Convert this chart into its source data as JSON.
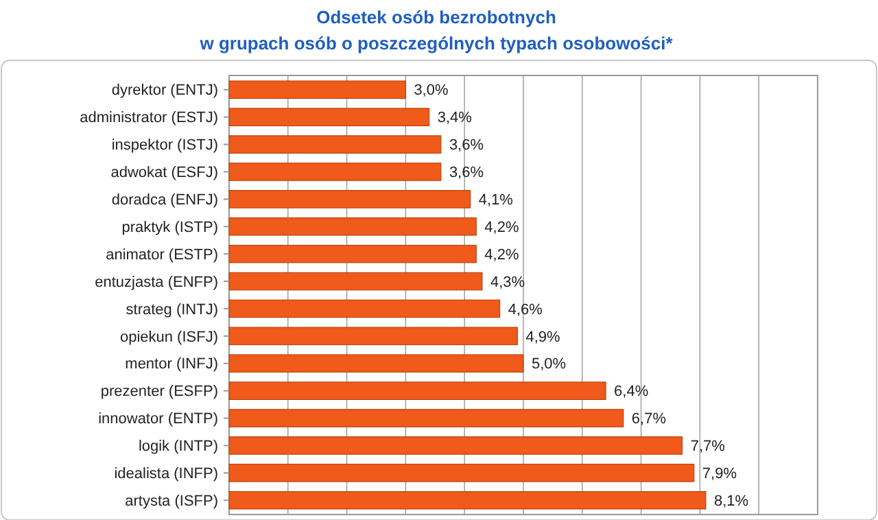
{
  "chart_data": {
    "type": "bar",
    "orientation": "horizontal",
    "title": "Odsetek osób bezrobotnych\nw grupach osób o poszczególnych typach osobowości*",
    "categories": [
      "dyrektor (ENTJ)",
      "administrator (ESTJ)",
      "inspektor (ISTJ)",
      "adwokat (ESFJ)",
      "doradca (ENFJ)",
      "praktyk (ISTP)",
      "animator (ESTP)",
      "entuzjasta (ENFP)",
      "strateg (INTJ)",
      "opiekun (ISFJ)",
      "mentor (INFJ)",
      "prezenter (ESFP)",
      "innowator (ENTP)",
      "logik (INTP)",
      "idealista (INFP)",
      "artysta (ISFP)"
    ],
    "values": [
      3.0,
      3.4,
      3.6,
      3.6,
      4.1,
      4.2,
      4.2,
      4.3,
      4.6,
      4.9,
      5.0,
      6.4,
      6.7,
      7.7,
      7.9,
      8.1
    ],
    "value_labels": [
      "3,0%",
      "3,4%",
      "3,6%",
      "3,6%",
      "4,1%",
      "4,2%",
      "4,2%",
      "4,3%",
      "4,6%",
      "4,9%",
      "5,0%",
      "6,4%",
      "6,7%",
      "7,7%",
      "7,9%",
      "8,1%"
    ],
    "color": "#f05a1a",
    "xlim": [
      0,
      10
    ],
    "xticks": [
      {
        "value": 0,
        "label": null
      },
      {
        "value": 1,
        "label": null
      },
      {
        "value": 2,
        "label": null
      },
      {
        "value": 3,
        "label": null
      },
      {
        "value": 4,
        "label": null
      },
      {
        "value": 5,
        "label": null
      },
      {
        "value": 6,
        "label": null
      },
      {
        "value": 7,
        "label": null
      },
      {
        "value": 8,
        "label": null
      },
      {
        "value": 9,
        "label": null
      },
      {
        "value": 10,
        "label": null
      }
    ],
    "tick_labels": "y",
    "grid": "x"
  }
}
